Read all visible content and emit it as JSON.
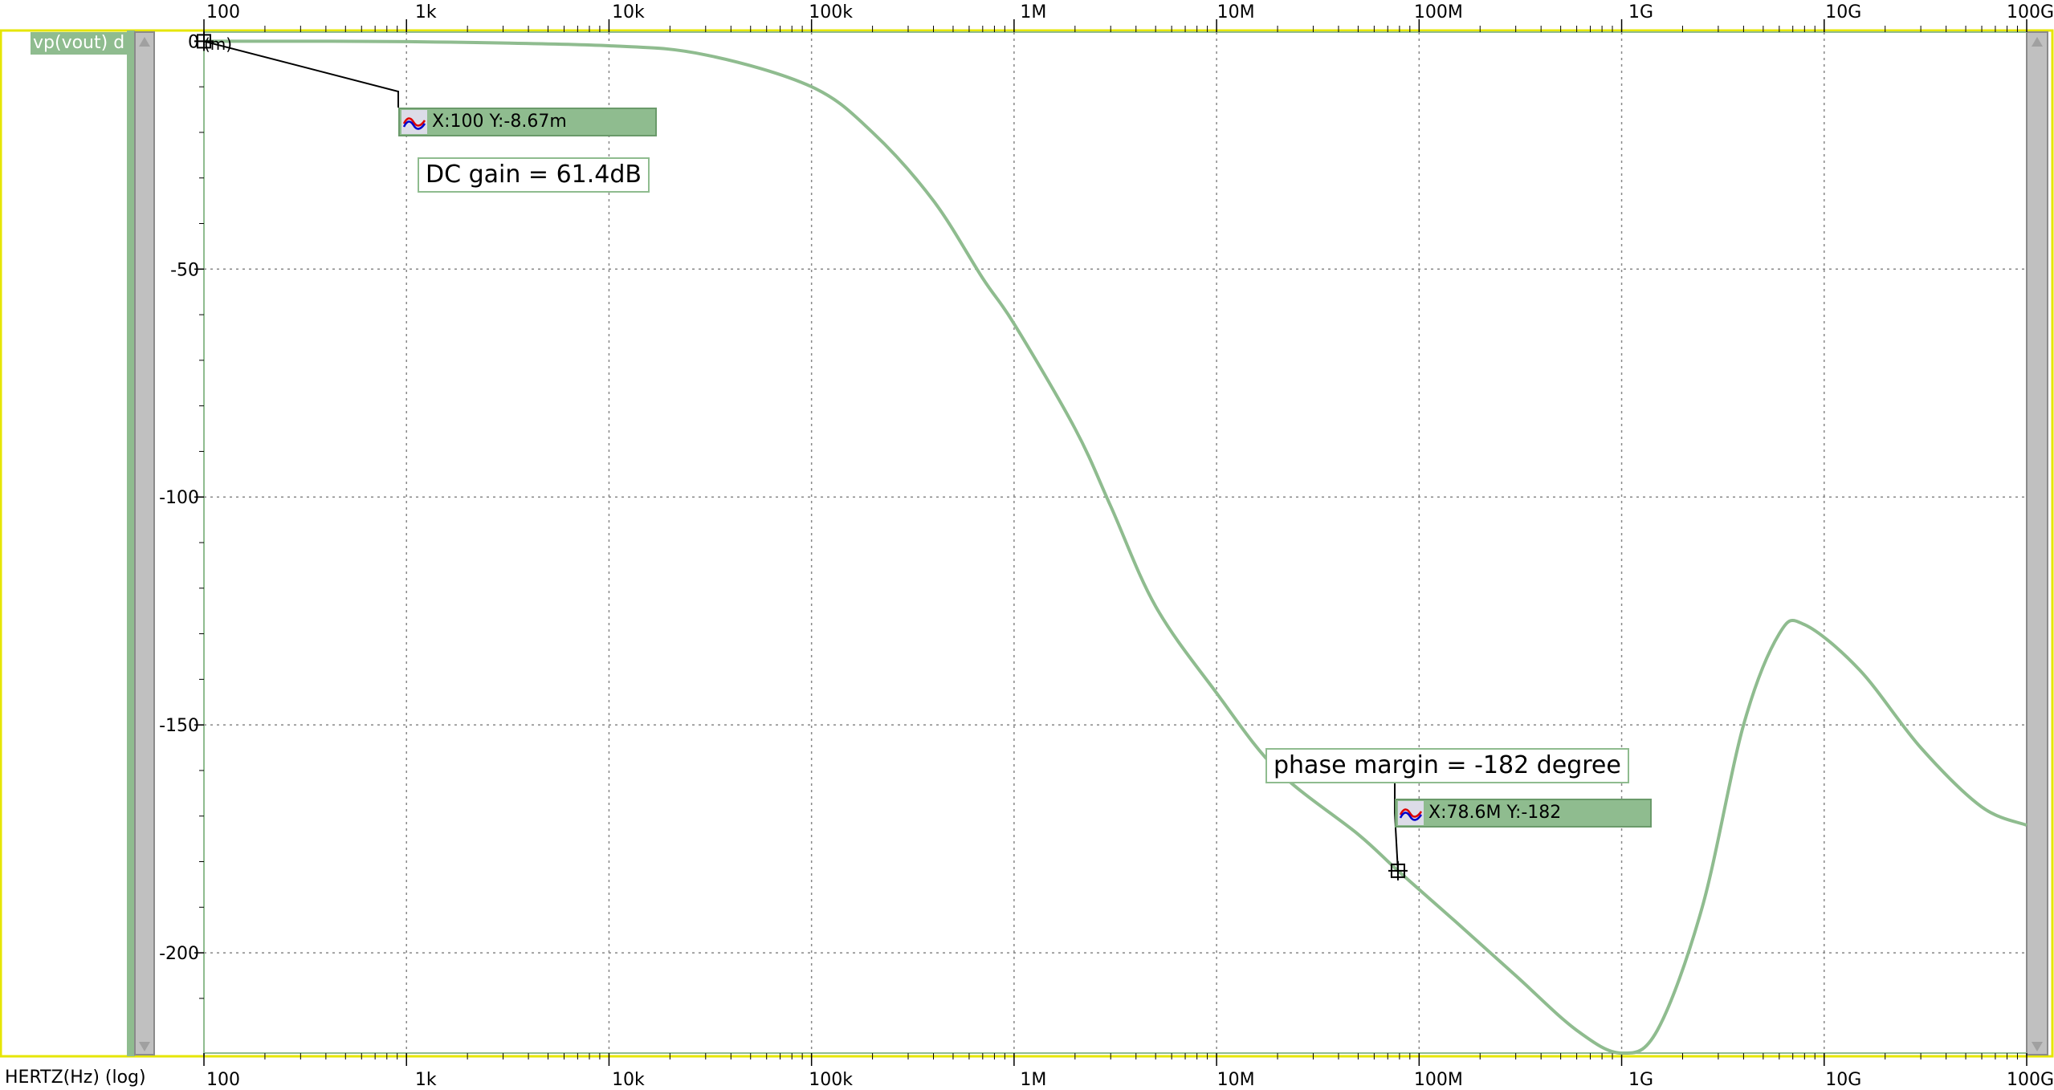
{
  "signal_label": "vp(vout) d",
  "unit_hint": "(m)",
  "xaxis_name": "HERTZ(Hz) (log)",
  "markers": [
    {
      "text": "X:100 Y:-8.67m",
      "x": 100,
      "y": -0.00867
    },
    {
      "text": "X:78.6M Y:-182",
      "x": 78600000,
      "y": -182
    }
  ],
  "annotations": [
    {
      "text": "DC gain = 61.4dB"
    },
    {
      "text": "phase margin = -182 degree"
    }
  ],
  "colors": {
    "trace": "#8fbc8f",
    "frame": "#e6e600",
    "grid": "#888888",
    "label_bg": "#8fbc8f"
  },
  "chart_data": {
    "type": "line",
    "title": "",
    "xlabel": "HERTZ(Hz) (log)",
    "ylabel": "",
    "xscale": "log",
    "xlim": [
      100,
      100000000000
    ],
    "ylim": [
      -222,
      2
    ],
    "grid": true,
    "x_ticks": [
      {
        "value": 100,
        "label": "100"
      },
      {
        "value": 1000,
        "label": "1k"
      },
      {
        "value": 10000,
        "label": "10k"
      },
      {
        "value": 100000,
        "label": "100k"
      },
      {
        "value": 1000000,
        "label": "1M"
      },
      {
        "value": 10000000,
        "label": "10M"
      },
      {
        "value": 100000000,
        "label": "100M"
      },
      {
        "value": 1000000000,
        "label": "1G"
      },
      {
        "value": 10000000000,
        "label": "10G"
      },
      {
        "value": 100000000000,
        "label": "100G"
      }
    ],
    "y_ticks": [
      {
        "value": 0,
        "label": "0"
      },
      {
        "value": -50,
        "label": "-50"
      },
      {
        "value": -100,
        "label": "-100"
      },
      {
        "value": -150,
        "label": "-150"
      },
      {
        "value": -200,
        "label": "-200"
      }
    ],
    "series": [
      {
        "name": "vp(vout) d",
        "x": [
          100,
          1000,
          10000,
          30000,
          100000,
          200000,
          400000,
          700000,
          1000000,
          2000000,
          3000000,
          5000000,
          10000000,
          20000000,
          50000000,
          78600000,
          150000000,
          300000000,
          600000000,
          1000000000,
          1500000000,
          2500000000,
          4000000000,
          6000000000,
          8000000000,
          15000000000,
          30000000000,
          60000000000,
          100000000000
        ],
        "y": [
          -0.00867,
          -0.1,
          -1.0,
          -3.0,
          -10,
          -20,
          -35,
          -52,
          -62,
          -85,
          -102,
          -124,
          -143,
          -160,
          -174,
          -182,
          -193,
          -205,
          -217,
          -222,
          -217,
          -190,
          -150,
          -130,
          -128,
          -138,
          -155,
          -168,
          -172
        ]
      }
    ]
  }
}
